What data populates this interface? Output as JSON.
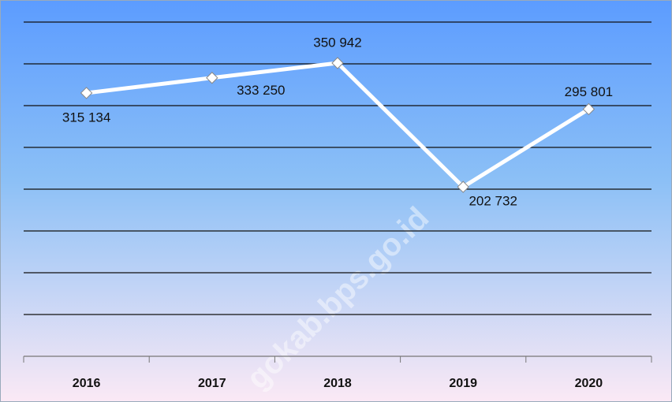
{
  "chart_data": {
    "type": "line",
    "categories": [
      "2016",
      "2017",
      "2018",
      "2019",
      "2020"
    ],
    "series": [
      {
        "name": null,
        "color": "#ffffff",
        "values": [
          315134,
          333250,
          350942,
          202732,
          295801
        ],
        "value_labels": [
          "315 134",
          "333 250",
          "350 942",
          "202 732",
          "295 801"
        ]
      }
    ],
    "ylim": [
      0,
      400000
    ],
    "yticks": [
      0,
      50000,
      100000,
      150000,
      200000,
      250000,
      300000,
      350000,
      400000
    ],
    "grid": true,
    "watermark": "gokab.bps.go.id"
  }
}
